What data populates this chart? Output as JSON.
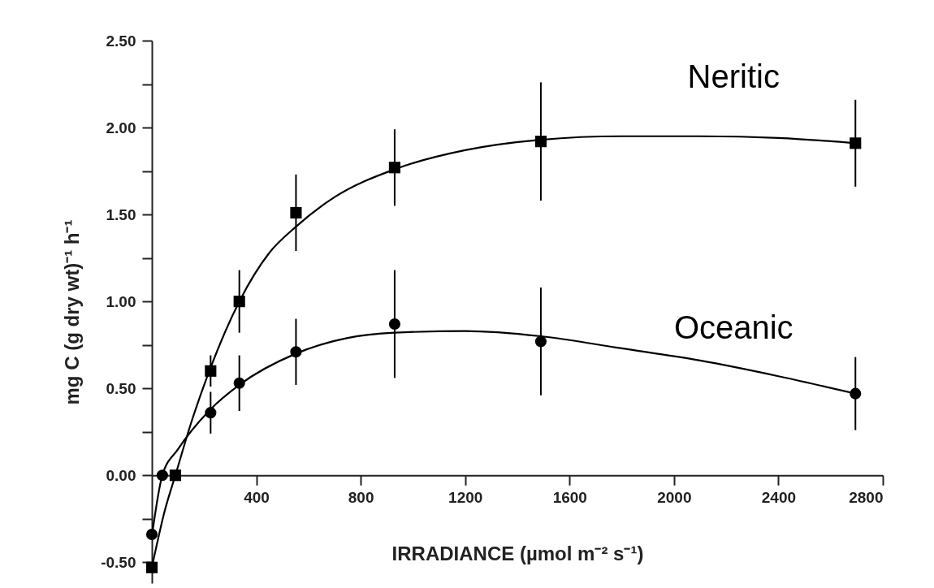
{
  "chart_data": {
    "type": "scatter",
    "xlabel": "IRRADIANCE  (µmol m⁻² s⁻¹)",
    "ylabel": "mg C  (g dry  wt)⁻¹ h⁻¹",
    "xlim": [
      0,
      2800
    ],
    "ylim": [
      -0.62,
      2.5
    ],
    "xticks": [
      400,
      800,
      1200,
      1600,
      2000,
      2400,
      2800
    ],
    "yticks": [
      {
        "value": -0.5,
        "label": "-0.50"
      },
      {
        "value": -0.25,
        "label": null
      },
      {
        "value": 0,
        "label": "0.00"
      },
      {
        "value": 0.25,
        "label": null
      },
      {
        "value": 0.5,
        "label": "0.50"
      },
      {
        "value": 0.75,
        "label": null
      },
      {
        "value": 1,
        "label": "1.00"
      },
      {
        "value": 1.25,
        "label": null
      },
      {
        "value": 1.5,
        "label": "1.50"
      },
      {
        "value": 1.75,
        "label": null
      },
      {
        "value": 2,
        "label": "2.00"
      },
      {
        "value": 2.25,
        "label": null
      },
      {
        "value": 2.5,
        "label": "2.50"
      }
    ],
    "grid": false,
    "series": [
      {
        "name": "Neritic",
        "marker": "square",
        "color": "#000000",
        "x": [
          0,
          90,
          225,
          335,
          552,
          930,
          1490,
          2695
        ],
        "values": [
          -0.53,
          0,
          0.6,
          1.0,
          1.51,
          1.77,
          1.92,
          1.91
        ],
        "errors": [
          null,
          null,
          0.09,
          0.18,
          0.22,
          0.22,
          0.34,
          0.25
        ]
      },
      {
        "name": "Oceanic",
        "marker": "circle",
        "color": "#000000",
        "x": [
          0,
          40,
          225,
          335,
          552,
          930,
          1490,
          2695
        ],
        "values": [
          -0.34,
          0,
          0.36,
          0.53,
          0.71,
          0.87,
          0.77,
          0.47
        ],
        "errors": [
          null,
          null,
          0.12,
          0.16,
          0.19,
          0.31,
          0.31,
          0.21
        ]
      },
      {
        "type": "line",
        "marker": "none",
        "color": "#000000",
        "x": [
          0,
          50,
          90,
          150,
          225,
          335,
          450,
          552,
          700,
          930,
          1200,
          1490,
          1800,
          2100,
          2400,
          2695
        ],
        "values": [
          -0.53,
          -0.2,
          0,
          0.3,
          0.62,
          1.0,
          1.28,
          1.43,
          1.6,
          1.76,
          1.87,
          1.93,
          1.95,
          1.95,
          1.94,
          1.91
        ]
      },
      {
        "type": "line",
        "marker": "none",
        "color": "#000000",
        "x": [
          0,
          40,
          100,
          225,
          335,
          552,
          750,
          930,
          1200,
          1490,
          1800,
          2100,
          2400,
          2695
        ],
        "values": [
          -0.35,
          0,
          0.15,
          0.38,
          0.52,
          0.7,
          0.79,
          0.82,
          0.83,
          0.8,
          0.73,
          0.66,
          0.57,
          0.47
        ]
      }
    ]
  }
}
